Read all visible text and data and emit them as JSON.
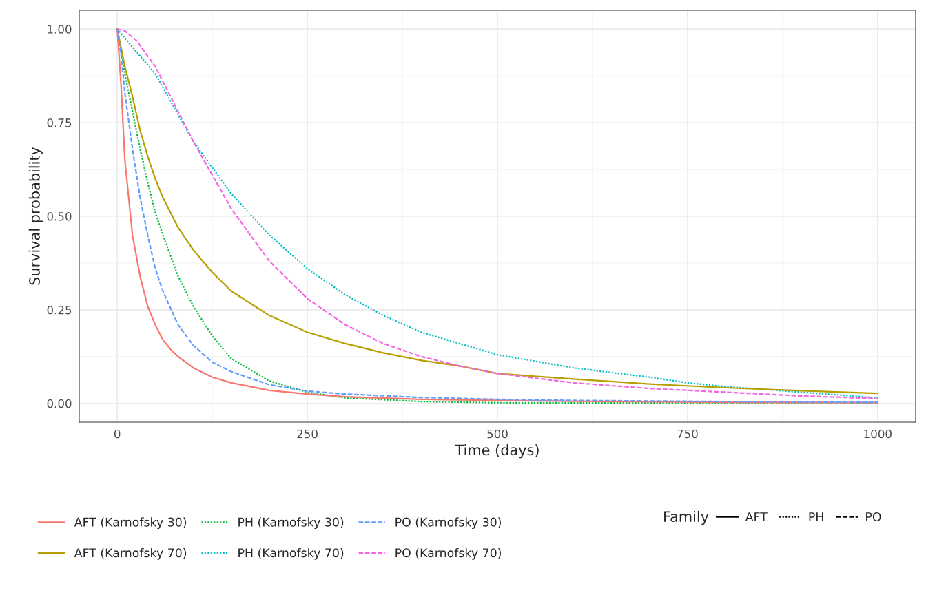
{
  "chart_data": {
    "type": "line",
    "xlabel": "Time (days)",
    "ylabel": "Survival probability",
    "legend_title": "Family",
    "annotations": [
      "AFT",
      "PH",
      "PO"
    ],
    "xlim": [
      -50,
      1050
    ],
    "ylim": [
      -0.05,
      1.05
    ],
    "xticks": [
      0,
      250,
      500,
      750,
      1000
    ],
    "yticks": [
      {
        "value": 0,
        "label": "0.00"
      },
      {
        "value": 0.25,
        "label": "0.25"
      },
      {
        "value": 0.5,
        "label": "0.50"
      },
      {
        "value": 0.75,
        "label": "0.75"
      },
      {
        "value": 1,
        "label": "1.00"
      }
    ],
    "grid": true,
    "legend": "bottom",
    "marker": "none",
    "series": [
      {
        "name": "AFT (Karnofsky 30)",
        "color": "#f8766d",
        "line_style": "solid",
        "x": [
          0,
          5,
          10,
          20,
          30,
          40,
          50,
          60,
          70,
          80,
          100,
          125,
          150,
          200,
          250,
          300,
          400,
          500,
          600,
          800,
          1000
        ],
        "values": [
          1,
          0.85,
          0.65,
          0.45,
          0.34,
          0.26,
          0.21,
          0.17,
          0.145,
          0.125,
          0.095,
          0.07,
          0.055,
          0.035,
          0.025,
          0.018,
          0.011,
          0.008,
          0.006,
          0.003,
          0.002
        ]
      },
      {
        "name": "AFT (Karnofsky 70)",
        "color": "#b79f00",
        "line_style": "solid",
        "x": [
          0,
          10,
          20,
          30,
          40,
          50,
          60,
          80,
          100,
          125,
          150,
          200,
          250,
          300,
          350,
          400,
          450,
          500,
          600,
          700,
          800,
          900,
          1000
        ],
        "values": [
          1,
          0.9,
          0.82,
          0.73,
          0.66,
          0.6,
          0.55,
          0.47,
          0.41,
          0.35,
          0.3,
          0.235,
          0.19,
          0.16,
          0.135,
          0.115,
          0.1,
          0.08,
          0.065,
          0.052,
          0.042,
          0.034,
          0.027
        ]
      },
      {
        "name": "PH (Karnofsky 30)",
        "color": "#00ba38",
        "line_style": "dotted",
        "x": [
          0,
          5,
          10,
          20,
          30,
          40,
          50,
          60,
          80,
          100,
          125,
          150,
          200,
          250,
          300,
          400,
          500,
          1000
        ],
        "values": [
          1,
          0.95,
          0.88,
          0.78,
          0.68,
          0.59,
          0.51,
          0.45,
          0.34,
          0.26,
          0.18,
          0.12,
          0.06,
          0.03,
          0.015,
          0.005,
          0.002,
          0
        ]
      },
      {
        "name": "PH (Karnofsky 70)",
        "color": "#00bfc4",
        "line_style": "dotted",
        "x": [
          0,
          25,
          50,
          100,
          150,
          200,
          250,
          300,
          350,
          400,
          450,
          500,
          600,
          700,
          750,
          800,
          900,
          1000
        ],
        "values": [
          1,
          0.94,
          0.88,
          0.7,
          0.56,
          0.45,
          0.36,
          0.29,
          0.235,
          0.19,
          0.16,
          0.13,
          0.095,
          0.07,
          0.055,
          0.045,
          0.03,
          0.015
        ]
      },
      {
        "name": "PO (Karnofsky 30)",
        "color": "#619cff",
        "line_style": "dashed",
        "x": [
          0,
          5,
          10,
          20,
          30,
          40,
          50,
          60,
          80,
          100,
          125,
          150,
          200,
          250,
          300,
          400,
          500,
          600,
          800,
          1000
        ],
        "values": [
          1,
          0.93,
          0.83,
          0.68,
          0.55,
          0.45,
          0.36,
          0.3,
          0.21,
          0.155,
          0.11,
          0.085,
          0.05,
          0.033,
          0.025,
          0.016,
          0.011,
          0.008,
          0.005,
          0.003
        ]
      },
      {
        "name": "PO (Karnofsky 70)",
        "color": "#f564e3",
        "line_style": "dashed",
        "x": [
          0,
          10,
          25,
          50,
          75,
          100,
          125,
          150,
          200,
          250,
          300,
          350,
          400,
          450,
          500,
          600,
          700,
          800,
          900,
          1000
        ],
        "values": [
          1,
          0.995,
          0.97,
          0.9,
          0.8,
          0.7,
          0.61,
          0.52,
          0.38,
          0.28,
          0.21,
          0.16,
          0.125,
          0.1,
          0.08,
          0.055,
          0.04,
          0.03,
          0.02,
          0.013
        ]
      }
    ]
  }
}
